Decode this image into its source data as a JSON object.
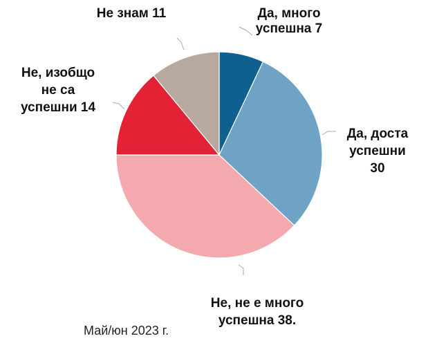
{
  "chart_data": {
    "type": "pie",
    "caption": "Май/юн 2023 г.",
    "slices": [
      {
        "value": 7,
        "label_lines": [
          "Да, много",
          "успешна 7"
        ],
        "color": "#0f5f8f"
      },
      {
        "value": 30,
        "label_lines": [
          "Да, доста",
          "успешни",
          "30"
        ],
        "color": "#6ea3c5"
      },
      {
        "value": 38,
        "label_lines": [
          "Не, не е много",
          "успешна 38."
        ],
        "color": "#f4a9ae"
      },
      {
        "value": 14,
        "label_lines": [
          "Не, изобщо",
          "не са",
          "успешни 14"
        ],
        "color": "#e32235"
      },
      {
        "value": 11,
        "label_lines": [
          "Не знам 11"
        ],
        "color": "#b7a8a0"
      }
    ]
  }
}
